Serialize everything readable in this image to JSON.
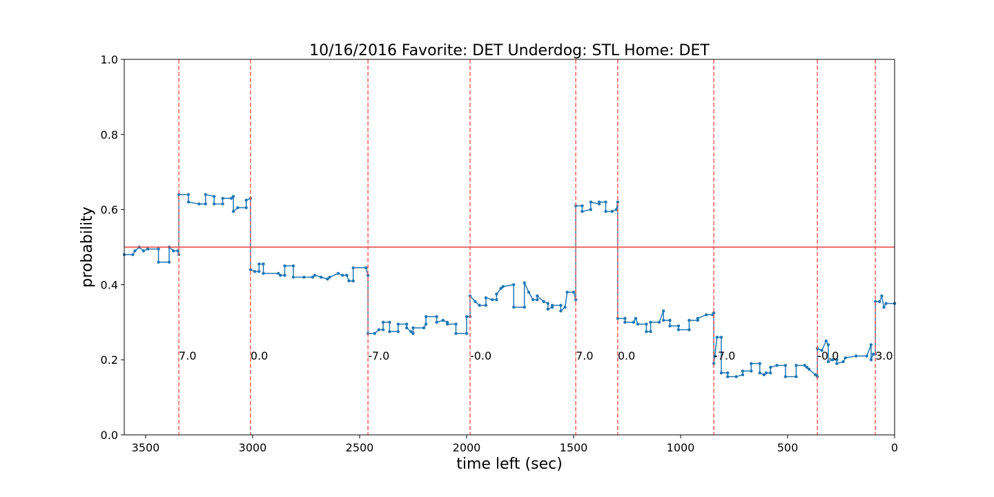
{
  "chart_data": {
    "type": "line",
    "title": "10/16/2016 Favorite: DET Underdog: STL Home: DET",
    "xlabel": "time left (sec)",
    "ylabel": "probability",
    "xlim": [
      3600,
      0
    ],
    "ylim": [
      0,
      1
    ],
    "xticks": [
      3500,
      3000,
      2500,
      2000,
      1500,
      1000,
      500,
      0
    ],
    "yticks": [
      {
        "value": 0,
        "label": "0.0"
      },
      {
        "value": 0.2,
        "label": "0.2"
      },
      {
        "value": 0.4,
        "label": "0.4"
      },
      {
        "value": 0.6,
        "label": "0.6"
      },
      {
        "value": 0.8,
        "label": "0.8"
      },
      {
        "value": 1,
        "label": "1.0"
      }
    ],
    "hline": 0.5,
    "hline_color": "#e8403a",
    "vline_color": "#f4605a",
    "vline_label_y": 0.2,
    "vlines": [
      {
        "x": 3345,
        "label": "7.0"
      },
      {
        "x": 3010,
        "label": "0.0"
      },
      {
        "x": 2461,
        "label": "-7.0"
      },
      {
        "x": 1984,
        "label": "-0.0"
      },
      {
        "x": 1490,
        "label": "7.0"
      },
      {
        "x": 1294,
        "label": "0.0"
      },
      {
        "x": 845,
        "label": "-7.0"
      },
      {
        "x": 361,
        "label": "-0.0"
      },
      {
        "x": 90,
        "label": "3.0"
      }
    ],
    "x": [
      3600,
      3560,
      3550,
      3530,
      3510,
      3490,
      3440,
      3440,
      3390,
      3390,
      3370,
      3350,
      3345,
      3345,
      3300,
      3300,
      3250,
      3220,
      3220,
      3180,
      3180,
      3140,
      3140,
      3100,
      3090,
      3090,
      3070,
      3030,
      3030,
      3010,
      3010,
      2990,
      2970,
      2970,
      2950,
      2950,
      2880,
      2870,
      2850,
      2850,
      2810,
      2810,
      2760,
      2720,
      2710,
      2680,
      2650,
      2640,
      2600,
      2580,
      2560,
      2550,
      2530,
      2530,
      2470,
      2461,
      2461,
      2430,
      2410,
      2390,
      2390,
      2360,
      2360,
      2320,
      2320,
      2280,
      2280,
      2260,
      2250,
      2250,
      2200,
      2190,
      2190,
      2140,
      2140,
      2110,
      2090,
      2090,
      2050,
      2050,
      2000,
      2000,
      1984,
      1984,
      1960,
      1940,
      1910,
      1910,
      1880,
      1860,
      1860,
      1840,
      1830,
      1780,
      1780,
      1730,
      1730,
      1710,
      1690,
      1670,
      1670,
      1640,
      1620,
      1620,
      1600,
      1600,
      1560,
      1560,
      1540,
      1530,
      1500,
      1490,
      1490,
      1460,
      1460,
      1420,
      1420,
      1380,
      1380,
      1350,
      1350,
      1320,
      1300,
      1294,
      1294,
      1260,
      1260,
      1220,
      1210,
      1200,
      1160,
      1160,
      1140,
      1140,
      1100,
      1080,
      1080,
      1050,
      1050,
      1010,
      1010,
      960,
      960,
      920,
      920,
      880,
      850,
      845,
      845,
      840,
      830,
      810,
      810,
      780,
      780,
      740,
      710,
      710,
      670,
      670,
      630,
      630,
      610,
      600,
      580,
      580,
      550,
      510,
      510,
      460,
      460,
      420,
      410,
      400,
      370,
      361,
      361,
      340,
      320,
      310,
      310,
      290,
      270,
      270,
      240,
      230,
      180,
      130,
      110,
      110,
      100,
      90,
      90,
      70,
      60,
      50,
      40,
      0
    ],
    "series": [
      {
        "name": "probability",
        "color": "#1f77b4",
        "values": [
          0.48,
          0.48,
          0.49,
          0.5,
          0.49,
          0.495,
          0.495,
          0.46,
          0.46,
          0.5,
          0.49,
          0.49,
          0.48,
          0.64,
          0.64,
          0.62,
          0.615,
          0.615,
          0.64,
          0.635,
          0.615,
          0.615,
          0.63,
          0.63,
          0.635,
          0.595,
          0.605,
          0.605,
          0.625,
          0.63,
          0.44,
          0.435,
          0.435,
          0.455,
          0.455,
          0.43,
          0.43,
          0.425,
          0.425,
          0.45,
          0.45,
          0.42,
          0.42,
          0.42,
          0.425,
          0.42,
          0.415,
          0.42,
          0.43,
          0.425,
          0.425,
          0.41,
          0.41,
          0.445,
          0.445,
          0.425,
          0.27,
          0.27,
          0.28,
          0.28,
          0.3,
          0.3,
          0.275,
          0.275,
          0.295,
          0.295,
          0.285,
          0.275,
          0.27,
          0.285,
          0.285,
          0.295,
          0.315,
          0.315,
          0.3,
          0.305,
          0.3,
          0.295,
          0.295,
          0.27,
          0.27,
          0.315,
          0.315,
          0.37,
          0.355,
          0.345,
          0.345,
          0.365,
          0.36,
          0.36,
          0.375,
          0.39,
          0.395,
          0.4,
          0.34,
          0.34,
          0.405,
          0.38,
          0.36,
          0.36,
          0.37,
          0.355,
          0.35,
          0.335,
          0.34,
          0.345,
          0.345,
          0.33,
          0.34,
          0.38,
          0.38,
          0.36,
          0.61,
          0.61,
          0.595,
          0.6,
          0.62,
          0.615,
          0.62,
          0.62,
          0.595,
          0.595,
          0.6,
          0.62,
          0.31,
          0.31,
          0.3,
          0.3,
          0.31,
          0.295,
          0.295,
          0.275,
          0.275,
          0.3,
          0.3,
          0.33,
          0.305,
          0.305,
          0.29,
          0.29,
          0.28,
          0.28,
          0.305,
          0.305,
          0.31,
          0.32,
          0.32,
          0.325,
          0.19,
          0.21,
          0.26,
          0.26,
          0.165,
          0.165,
          0.155,
          0.155,
          0.16,
          0.17,
          0.17,
          0.19,
          0.19,
          0.165,
          0.16,
          0.165,
          0.165,
          0.18,
          0.185,
          0.185,
          0.155,
          0.155,
          0.185,
          0.185,
          0.18,
          0.175,
          0.16,
          0.155,
          0.23,
          0.225,
          0.25,
          0.24,
          0.195,
          0.2,
          0.2,
          0.19,
          0.195,
          0.205,
          0.21,
          0.21,
          0.24,
          0.2,
          0.215,
          0.215,
          0.355,
          0.355,
          0.37,
          0.34,
          0.35,
          0.35
        ]
      }
    ]
  }
}
